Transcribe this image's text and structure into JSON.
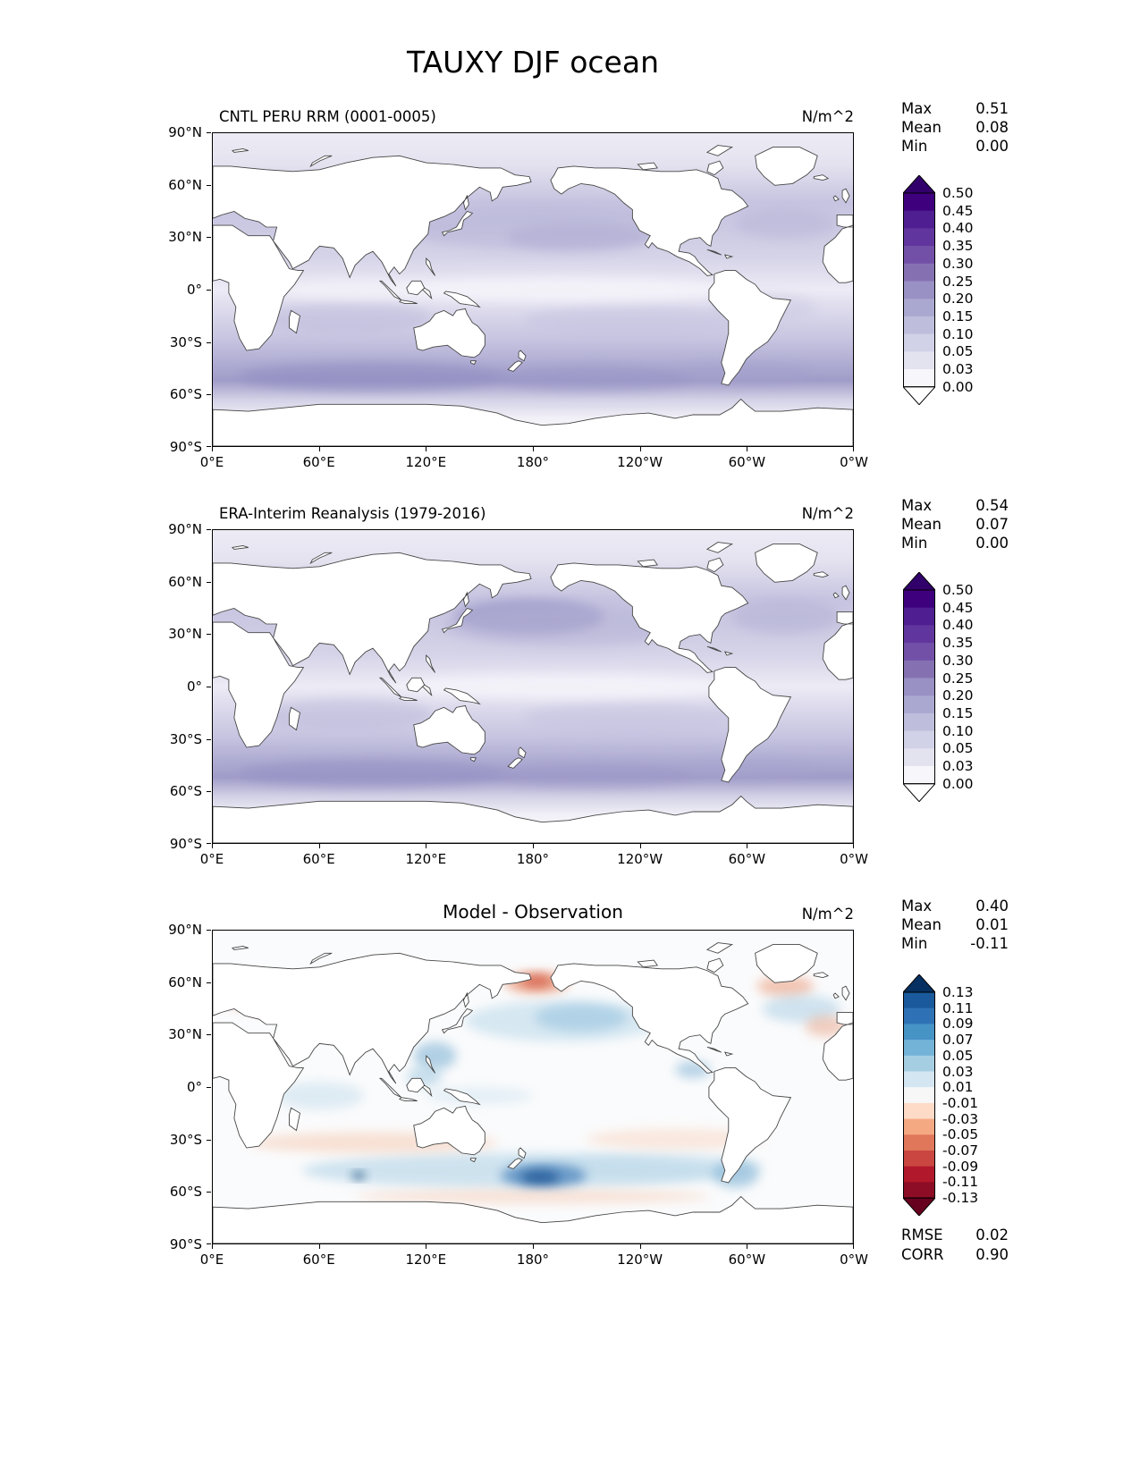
{
  "figure": {
    "title": "TAUXY DJF ocean"
  },
  "axis": {
    "x_ticks": [
      "0°E",
      "60°E",
      "120°E",
      "180°",
      "120°W",
      "60°W",
      "0°W"
    ],
    "y_ticks": [
      "90°N",
      "60°N",
      "30°N",
      "0°",
      "30°S",
      "60°S",
      "90°S"
    ]
  },
  "panels": [
    {
      "title": "CNTL PERU RRM (0001-0005)",
      "units": "N/m^2",
      "stats": [
        {
          "label": "Max",
          "value": "0.51"
        },
        {
          "label": "Mean",
          "value": "0.08"
        },
        {
          "label": "Min",
          "value": "0.00"
        }
      ]
    },
    {
      "title": "ERA-Interim Reanalysis (1979-2016)",
      "units": "N/m^2",
      "stats": [
        {
          "label": "Max",
          "value": "0.54"
        },
        {
          "label": "Mean",
          "value": "0.07"
        },
        {
          "label": "Min",
          "value": "0.00"
        }
      ]
    },
    {
      "title": "Model - Observation",
      "units": "N/m^2",
      "stats": [
        {
          "label": "Max",
          "value": "0.40"
        },
        {
          "label": "Mean",
          "value": "0.01"
        },
        {
          "label": "Min",
          "value": "-0.11"
        }
      ],
      "extra_stats": [
        {
          "label": "RMSE",
          "value": "0.02"
        },
        {
          "label": "CORR",
          "value": "0.90"
        }
      ]
    }
  ],
  "colorbars": {
    "sequential": {
      "labels": [
        "0.50",
        "0.45",
        "0.40",
        "0.35",
        "0.30",
        "0.25",
        "0.20",
        "0.15",
        "0.10",
        "0.05",
        "0.03",
        "0.00"
      ],
      "colors": [
        "#3f007d",
        "#4f1f92",
        "#61359e",
        "#7350a8",
        "#8571b2",
        "#9990c4",
        "#aaa7d0",
        "#bebedc",
        "#d1d1e7",
        "#e3e3f0",
        "#f7f6fb"
      ],
      "extend_over": "#32006b",
      "extend_under": "#ffffff"
    },
    "diverging": {
      "labels": [
        "0.13",
        "0.11",
        "0.09",
        "0.07",
        "0.05",
        "0.03",
        "0.01",
        "-0.01",
        "-0.03",
        "-0.05",
        "-0.07",
        "-0.09",
        "-0.11",
        "-0.13"
      ],
      "colors": [
        "#1a5a9c",
        "#2e72b5",
        "#4693c6",
        "#74b3d8",
        "#a6cee3",
        "#d4e6f1",
        "#f7f7f7",
        "#fddbc7",
        "#f5a982",
        "#e0765a",
        "#ca4741",
        "#b2182b",
        "#8c0d25"
      ],
      "extend_over": "#053061",
      "extend_under": "#67001f"
    }
  },
  "chart_data": [
    {
      "type": "heatmap",
      "subtype": "filled-contour global map, land masked white, Pacific-centered equirectangular",
      "title": "CNTL PERU RRM (0001-0005)",
      "units": "N/m^2",
      "x_ticks": [
        "0°E",
        "60°E",
        "120°E",
        "180°",
        "120°W",
        "60°W",
        "0°W"
      ],
      "y_ticks": [
        "90°N",
        "60°N",
        "30°N",
        "0°",
        "30°S",
        "60°S",
        "90°S"
      ],
      "contour_levels": [
        0.0,
        0.03,
        0.05,
        0.1,
        0.15,
        0.2,
        0.25,
        0.3,
        0.35,
        0.4,
        0.45,
        0.5
      ],
      "colormap": "white-to-purple sequential (Purples), extend both ends",
      "stats": {
        "max": 0.51,
        "mean": 0.08,
        "min": 0.0
      },
      "pattern_notes": [
        "strongest zonal wind stress band over Southern Ocean 40-60S (~0.15-0.30)",
        "moderate band 25-50N across North Pacific and North Atlantic (~0.10-0.20)",
        "trade-wind bands near 10-30N and 10-30S (~0.05-0.15)",
        "near-zero values along the equator and poleward of 65S"
      ]
    },
    {
      "type": "heatmap",
      "subtype": "filled-contour global map, land masked white, Pacific-centered equirectangular",
      "title": "ERA-Interim Reanalysis (1979-2016)",
      "units": "N/m^2",
      "x_ticks": [
        "0°E",
        "60°E",
        "120°E",
        "180°",
        "120°W",
        "60°W",
        "0°W"
      ],
      "y_ticks": [
        "90°N",
        "60°N",
        "30°N",
        "0°",
        "30°S",
        "60°S",
        "90°S"
      ],
      "contour_levels": [
        0.0,
        0.03,
        0.05,
        0.1,
        0.15,
        0.2,
        0.25,
        0.3,
        0.35,
        0.4,
        0.45,
        0.5
      ],
      "colormap": "white-to-purple sequential (Purples), extend both ends",
      "stats": {
        "max": 0.54,
        "mean": 0.07,
        "min": 0.0
      },
      "pattern_notes": [
        "Southern Ocean westerly band 40-60S (~0.15-0.30)",
        "dark maximum in northwest Pacific near 35-40N, 160-180E (~0.25-0.35)",
        "moderate North Atlantic storm-track band (~0.10-0.20)",
        "light trade-wind bands either side of a near-zero equator"
      ]
    },
    {
      "type": "heatmap",
      "subtype": "filled-contour difference map (model minus observation), land masked white",
      "title": "Model - Observation",
      "units": "N/m^2",
      "x_ticks": [
        "0°E",
        "60°E",
        "120°E",
        "180°",
        "120°W",
        "60°W",
        "0°W"
      ],
      "y_ticks": [
        "90°N",
        "60°N",
        "30°N",
        "0°",
        "30°S",
        "60°S",
        "90°S"
      ],
      "contour_levels": [
        -0.13,
        -0.11,
        -0.09,
        -0.07,
        -0.05,
        -0.03,
        -0.01,
        0.01,
        0.03,
        0.05,
        0.07,
        0.09,
        0.11,
        0.13
      ],
      "colormap": "diverging: blue = positive bias, red = negative bias, white near zero",
      "stats": {
        "max": 0.4,
        "mean": 0.01,
        "min": -0.11,
        "rmse": 0.02,
        "corr": 0.9
      },
      "pattern_notes": [
        "mostly near-zero (white) differences over the global ocean",
        "positive (blue) band over Southern Ocean 40-60S with dark maximum southeast of New Zealand",
        "negative (red) spot in far North Pacific near 58N,180 and near southern Greenland",
        "weak negative (orange) bands near 25-35S and 60-65S; blue patches along Asian and Central American coasts"
      ]
    }
  ]
}
